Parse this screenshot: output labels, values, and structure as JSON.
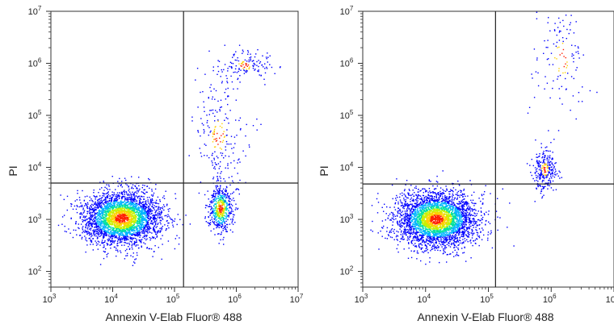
{
  "chart_data": [
    {
      "type": "scatter",
      "title": "",
      "xlabel": "Annexin V-Elab Fluor® 488",
      "ylabel": "PI",
      "xscale": "log",
      "yscale": "log",
      "xlim": [
        1000,
        10000000
      ],
      "ylim": [
        50,
        10000000
      ],
      "x_ticks": [
        {
          "value": 1000,
          "base": "10",
          "exp": "3"
        },
        {
          "value": 10000,
          "base": "10",
          "exp": "4"
        },
        {
          "value": 100000,
          "base": "10",
          "exp": "5"
        },
        {
          "value": 1000000,
          "base": "10",
          "exp": "6"
        },
        {
          "value": 10000000,
          "base": "10",
          "exp": "7"
        }
      ],
      "y_ticks": [
        {
          "value": 100,
          "base": "10",
          "exp": "2"
        },
        {
          "value": 1000,
          "base": "10",
          "exp": "3"
        },
        {
          "value": 10000,
          "base": "10",
          "exp": "4"
        },
        {
          "value": 100000,
          "base": "10",
          "exp": "5"
        },
        {
          "value": 1000000,
          "base": "10",
          "exp": "6"
        },
        {
          "value": 10000000,
          "base": "10",
          "exp": "7"
        }
      ],
      "gate": {
        "x": 140000,
        "y": 5000
      },
      "grid": false,
      "density_colors": [
        "#0000ff",
        "#00b4ff",
        "#00e0a0",
        "#c8f000",
        "#ffd000",
        "#ff2000"
      ],
      "populations": [
        {
          "center": [
            14000,
            1050
          ],
          "count": 3200
        },
        {
          "center": [
            560000,
            1600
          ],
          "count": 550
        },
        {
          "center": [
            520000,
            40000
          ],
          "count": 220
        },
        {
          "center": [
            1400000,
            900000
          ],
          "count": 140
        }
      ]
    },
    {
      "type": "scatter",
      "title": "",
      "xlabel": "Annexin V-Elab Fluor® 488",
      "ylabel": "PI",
      "xscale": "log",
      "yscale": "log",
      "xlim": [
        1000,
        10000000
      ],
      "ylim": [
        50,
        10000000
      ],
      "x_ticks": [
        {
          "value": 1000,
          "base": "10",
          "exp": "3"
        },
        {
          "value": 10000,
          "base": "10",
          "exp": "4"
        },
        {
          "value": 100000,
          "base": "10",
          "exp": "5"
        },
        {
          "value": 1000000,
          "base": "10",
          "exp": "6"
        },
        {
          "value": 10000000,
          "base": "10",
          "exp": "7"
        }
      ],
      "y_ticks": [
        {
          "value": 100,
          "base": "10",
          "exp": "2"
        },
        {
          "value": 1000,
          "base": "10",
          "exp": "3"
        },
        {
          "value": 10000,
          "base": "10",
          "exp": "4"
        },
        {
          "value": 100000,
          "base": "10",
          "exp": "5"
        },
        {
          "value": 1000000,
          "base": "10",
          "exp": "6"
        },
        {
          "value": 10000000,
          "base": "10",
          "exp": "7"
        }
      ],
      "gate": {
        "x": 130000,
        "y": 4800
      },
      "grid": false,
      "density_colors": [
        "#0000ff",
        "#00b4ff",
        "#00e0a0",
        "#c8f000",
        "#ffd000",
        "#ff2000"
      ],
      "populations": [
        {
          "center": [
            15000,
            1000
          ],
          "count": 3400
        },
        {
          "center": [
            800000,
            9000
          ],
          "count": 260
        },
        {
          "center": [
            1500000,
            1250000
          ],
          "count": 120
        }
      ]
    }
  ]
}
